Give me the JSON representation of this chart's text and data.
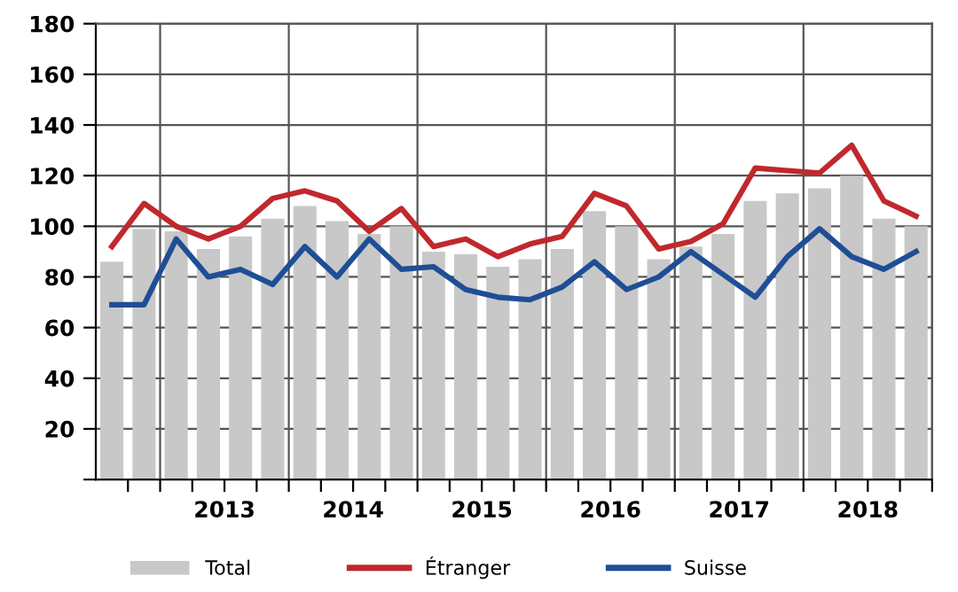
{
  "chart_data": {
    "type": "bar",
    "x": [
      2012.625,
      2012.875,
      2013.125,
      2013.375,
      2013.625,
      2013.875,
      2014.125,
      2014.375,
      2014.625,
      2014.875,
      2015.125,
      2015.375,
      2015.625,
      2015.875,
      2016.125,
      2016.375,
      2016.625,
      2016.875,
      2017.125,
      2017.375,
      2017.625,
      2017.875,
      2018.125,
      2018.375,
      2018.625,
      2018.875
    ],
    "series": [
      {
        "name": "Total",
        "color": "#c8c8c8",
        "values": [
          86,
          99,
          98,
          91,
          96,
          103,
          108,
          102,
          97,
          100,
          90,
          89,
          84,
          87,
          91,
          106,
          100,
          87,
          92,
          97,
          110,
          113,
          115,
          120,
          103,
          100
        ]
      },
      {
        "name": "Étranger",
        "type": "line",
        "color": "#c0282d",
        "values": [
          92,
          109,
          100,
          95,
          100,
          111,
          114,
          110,
          98,
          107,
          92,
          95,
          88,
          93,
          96,
          113,
          108,
          91,
          94,
          101,
          123,
          122,
          121,
          132,
          110,
          104
        ]
      },
      {
        "name": "Suisse",
        "type": "line",
        "color": "#1f4e96",
        "values": [
          69,
          69,
          95,
          80,
          83,
          77,
          92,
          80,
          95,
          83,
          84,
          75,
          72,
          71,
          76,
          86,
          75,
          80,
          90,
          81,
          72,
          88,
          99,
          88,
          83,
          90
        ]
      }
    ],
    "xlim": [
      2012.5,
      2019.0
    ],
    "xticks": [
      {
        "value": 2012.75,
        "label": null
      },
      {
        "value": 2013,
        "label": null
      },
      {
        "value": 2013.25,
        "label": null
      },
      {
        "value": 2013.5,
        "label": "2013"
      },
      {
        "value": 2013.75,
        "label": null
      },
      {
        "value": 2014,
        "label": null
      },
      {
        "value": 2014.25,
        "label": null
      },
      {
        "value": 2014.5,
        "label": "2014"
      },
      {
        "value": 2014.75,
        "label": null
      },
      {
        "value": 2015,
        "label": null
      },
      {
        "value": 2015.25,
        "label": null
      },
      {
        "value": 2015.5,
        "label": "2015"
      },
      {
        "value": 2015.75,
        "label": null
      },
      {
        "value": 2016,
        "label": null
      },
      {
        "value": 2016.25,
        "label": null
      },
      {
        "value": 2016.5,
        "label": "2016"
      },
      {
        "value": 2016.75,
        "label": null
      },
      {
        "value": 2017,
        "label": null
      },
      {
        "value": 2017.25,
        "label": null
      },
      {
        "value": 2017.5,
        "label": "2017"
      },
      {
        "value": 2017.75,
        "label": null
      },
      {
        "value": 2018,
        "label": null
      },
      {
        "value": 2018.25,
        "label": null
      },
      {
        "value": 2018.5,
        "label": "2018"
      },
      {
        "value": 2018.75,
        "label": null
      },
      {
        "value": 2019,
        "label": null
      }
    ],
    "ylim": [
      0,
      180
    ],
    "yticks": [
      {
        "value": 0,
        "label": null
      },
      20,
      40,
      60,
      80,
      100,
      120,
      140,
      160,
      180
    ],
    "grid": true,
    "legend": "bottom",
    "line_style": "solid",
    "marker": "none"
  }
}
